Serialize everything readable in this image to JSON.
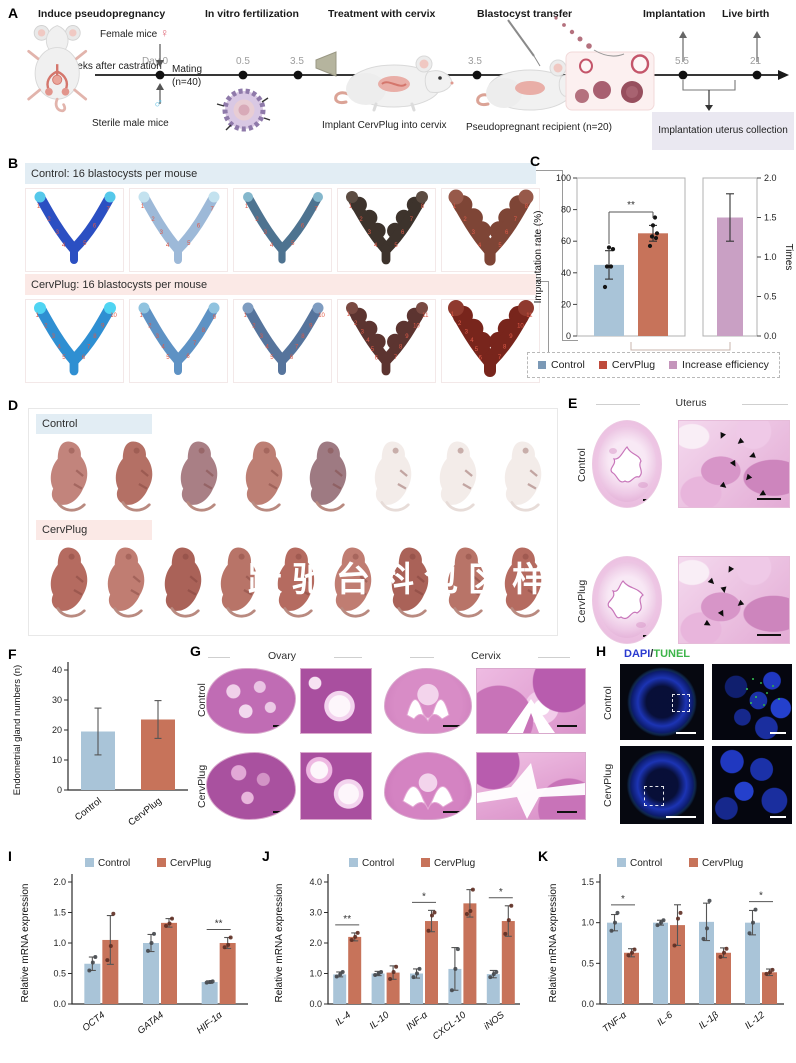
{
  "panels": {
    "A": {
      "label": "A",
      "steps": [
        "Induce pseudopregnancy",
        "In vitro fertilization",
        "Treatment with cervix",
        "Blastocyst transfer",
        "Implantation",
        "Live birth"
      ],
      "female": "Female mice",
      "female_sym": "♀",
      "male_sym": "♂",
      "castration": "2 weeks after castration",
      "sterile": "Sterile male mice",
      "day0": "Day 0",
      "mating_line1": "Mating",
      "mating_line2": "(n=40)",
      "timepoints": [
        "0.5",
        "3.5",
        "3.5",
        "5.5",
        "21"
      ],
      "implant": "Implant CervPlug into cervix",
      "recipient": "Pseudopregnant recipient (n=20)",
      "collection": "Implantation uterus collection"
    },
    "B": {
      "label": "B",
      "control_header": "Control: 16 blastocysts per mouse",
      "cervplug_header": "CervPlug: 16 blastocysts per mouse",
      "uteri_control": [
        {
          "color": "#2b4fc2",
          "tip": "#55c8ea",
          "width": 10,
          "sites": 7,
          "beads": false
        },
        {
          "color": "#9db9d8",
          "tip": "#c3e2ef",
          "width": 10,
          "sites": 7,
          "beads": false
        },
        {
          "color": "#4e7390",
          "tip": "#84b7cc",
          "width": 9,
          "sites": 7,
          "beads": false
        },
        {
          "color": "#3d332c",
          "tip": "#5c4c42",
          "width": 11,
          "sites": 8,
          "beads": true
        },
        {
          "color": "#7e4536",
          "tip": "#97594a",
          "width": 14,
          "sites": 8,
          "beads": true
        }
      ],
      "uteri_cervplug": [
        {
          "color": "#2f8fd2",
          "tip": "#4fd4f2",
          "width": 11,
          "sites": 10,
          "beads": false
        },
        {
          "color": "#5e92c4",
          "tip": "#90c3df",
          "width": 10,
          "sites": 9,
          "beads": false
        },
        {
          "color": "#56749c",
          "tip": "#7e9cc0",
          "width": 10,
          "sites": 10,
          "beads": false
        },
        {
          "color": "#5c3430",
          "tip": "#7a4a42",
          "width": 11,
          "sites": 11,
          "beads": true
        },
        {
          "color": "#78251c",
          "tip": "#8f3a2e",
          "width": 15,
          "sites": 11,
          "beads": true
        }
      ]
    },
    "C": {
      "label": "C"
    },
    "D": {
      "label": "D",
      "control": "Control",
      "cervplug": "CervPlug",
      "control_pups_pink": 5,
      "control_pups_pale": 3,
      "cervplug_pups": 9,
      "watermark": "跃驰台科包区样"
    },
    "E": {
      "label": "E",
      "title": "Uterus",
      "control": "Control",
      "cervplug": "CervPlug"
    },
    "F": {
      "label": "F"
    },
    "G": {
      "label": "G",
      "ovary": "Ovary",
      "cervix": "Cervix",
      "control": "Control",
      "cervplug": "CervPlug"
    },
    "H": {
      "label": "H",
      "dapi": "DAPI",
      "slash": "/",
      "tunel": "TUNEL",
      "control": "Control",
      "cervplug": "CervPlug"
    },
    "I": {
      "label": "I"
    },
    "J": {
      "label": "J"
    },
    "K": {
      "label": "K"
    }
  },
  "colors": {
    "control_bar": "#a9c4d8",
    "cervplug_bar": "#c7735a",
    "increase_bar": "#c9a0c4",
    "header_blue": "#e2edf4",
    "header_pink": "#fbe9e6",
    "dapi_blue": "#2a3ad0",
    "tunel_green": "#3db54a",
    "site_number_red": "#e05a48"
  },
  "chart_data": [
    {
      "id": "C",
      "type": "bar",
      "ylabel": "Implantation rate (%)",
      "ylim": [
        0,
        100
      ],
      "yticks": [
        "0",
        "20",
        "40",
        "60",
        "80",
        "100"
      ],
      "categories": [
        "Control",
        "CervPlug"
      ],
      "values": [
        45,
        65
      ],
      "errors": [
        9,
        5
      ],
      "points": [
        [
          31,
          44,
          44,
          55,
          56
        ],
        [
          57,
          62,
          63,
          65,
          70,
          75
        ]
      ],
      "bar_colors": [
        "#a9c4d8",
        "#c7735a"
      ],
      "sig_label": "**",
      "secondary": {
        "ylabel": "Times",
        "ylim": [
          0,
          2
        ],
        "yticks": [
          "0.0",
          "0.5",
          "1.0",
          "1.5",
          "2.0"
        ],
        "category": "Increase efficiency",
        "value": 1.5,
        "error": 0.3,
        "color": "#c9a0c4"
      },
      "legend": [
        {
          "label": "Control",
          "color": "#7b99b6"
        },
        {
          "label": "CervPlug",
          "color": "#bf4b3c"
        },
        {
          "label": "Increase efficiency",
          "color": "#c495bb"
        }
      ]
    },
    {
      "id": "F",
      "type": "bar",
      "ylabel": "Endometrial gland numbers (n)",
      "ylim": [
        0,
        40
      ],
      "yticks": [
        "0",
        "10",
        "20",
        "30",
        "40"
      ],
      "categories": [
        "Control",
        "CervPlug"
      ],
      "values": [
        19.5,
        23.5
      ],
      "errors": [
        7.8,
        6.3
      ],
      "bar_colors": [
        "#a9c4d8",
        "#c7735a"
      ]
    },
    {
      "id": "I",
      "type": "grouped_bar",
      "ylabel": "Relative mRNA expression",
      "ylim": [
        0,
        2
      ],
      "yticks": [
        "0.0",
        "0.5",
        "1.0",
        "1.5",
        "2.0"
      ],
      "categories": [
        "OCT4",
        "GATA4",
        "HIF-1α"
      ],
      "series": [
        {
          "name": "Control",
          "color": "#a9c4d8",
          "values": [
            0.66,
            1.0,
            0.36
          ],
          "errors": [
            0.11,
            0.14,
            0.02
          ],
          "points": [
            [
              0.55,
              0.68,
              0.77
            ],
            [
              0.87,
              1.0,
              1.15
            ],
            [
              0.35,
              0.36,
              0.37
            ]
          ]
        },
        {
          "name": "CervPlug",
          "color": "#c7735a",
          "values": [
            1.05,
            1.33,
            1.0
          ],
          "errors": [
            0.4,
            0.07,
            0.09
          ],
          "points": [
            [
              0.72,
              0.95,
              1.48
            ],
            [
              1.28,
              1.32,
              1.4
            ],
            [
              0.93,
              0.97,
              1.09
            ]
          ]
        }
      ],
      "sig": [
        {
          "cat": 2,
          "label": "**"
        }
      ]
    },
    {
      "id": "J",
      "type": "grouped_bar",
      "ylabel": "Relative mRNA expression",
      "ylim": [
        0,
        4
      ],
      "yticks": [
        "0.0",
        "1.0",
        "2.0",
        "3.0",
        "4.0"
      ],
      "categories": [
        "IL-4",
        "IL-10",
        "INF-α",
        "CXCL-10",
        "iNOS"
      ],
      "series": [
        {
          "name": "Control",
          "color": "#a9c4d8",
          "values": [
            0.97,
            1.0,
            1.0,
            1.15,
            0.98
          ],
          "errors": [
            0.08,
            0.07,
            0.15,
            0.7,
            0.12
          ],
          "points": [
            [
              0.9,
              0.97,
              1.05
            ],
            [
              0.95,
              1.0,
              1.05
            ],
            [
              0.88,
              1.0,
              1.15
            ],
            [
              0.45,
              1.15,
              1.8
            ],
            [
              0.88,
              0.98,
              1.05
            ]
          ]
        },
        {
          "name": "CervPlug",
          "color": "#c7735a",
          "values": [
            2.2,
            1.03,
            2.72,
            3.3,
            2.72
          ],
          "errors": [
            0.13,
            0.22,
            0.35,
            0.45,
            0.5
          ],
          "points": [
            [
              2.1,
              2.2,
              2.33
            ],
            [
              0.82,
              1.05,
              1.22
            ],
            [
              2.4,
              2.9,
              3.0
            ],
            [
              2.95,
              3.05,
              3.75
            ],
            [
              2.3,
              2.75,
              3.22
            ]
          ]
        }
      ],
      "sig": [
        {
          "cat": 0,
          "label": "**"
        },
        {
          "cat": 2,
          "label": "*"
        },
        {
          "cat": 4,
          "label": "*"
        }
      ]
    },
    {
      "id": "K",
      "type": "grouped_bar",
      "ylabel": "Relative mRNA expression",
      "ylim": [
        0,
        1.5
      ],
      "yticks": [
        "0.0",
        "0.5",
        "1.0",
        "1.5"
      ],
      "categories": [
        "TNF-α",
        "IL-6",
        "IL-1β",
        "IL-12"
      ],
      "series": [
        {
          "name": "Control",
          "color": "#a9c4d8",
          "values": [
            1.0,
            1.0,
            1.01,
            1.0
          ],
          "errors": [
            0.1,
            0.03,
            0.23,
            0.15
          ],
          "points": [
            [
              0.9,
              1.0,
              1.12
            ],
            [
              0.97,
              1.0,
              1.03
            ],
            [
              0.8,
              0.93,
              1.27
            ],
            [
              0.87,
              1.0,
              1.16
            ]
          ]
        },
        {
          "name": "CervPlug",
          "color": "#c7735a",
          "values": [
            0.63,
            0.97,
            0.63,
            0.39
          ],
          "errors": [
            0.05,
            0.25,
            0.06,
            0.04
          ],
          "points": [
            [
              0.6,
              0.63,
              0.67
            ],
            [
              0.72,
              1.05,
              1.12
            ],
            [
              0.58,
              0.63,
              0.68
            ],
            [
              0.37,
              0.39,
              0.42
            ]
          ]
        }
      ],
      "sig": [
        {
          "cat": 0,
          "label": "*"
        },
        {
          "cat": 3,
          "label": "*"
        }
      ]
    }
  ]
}
